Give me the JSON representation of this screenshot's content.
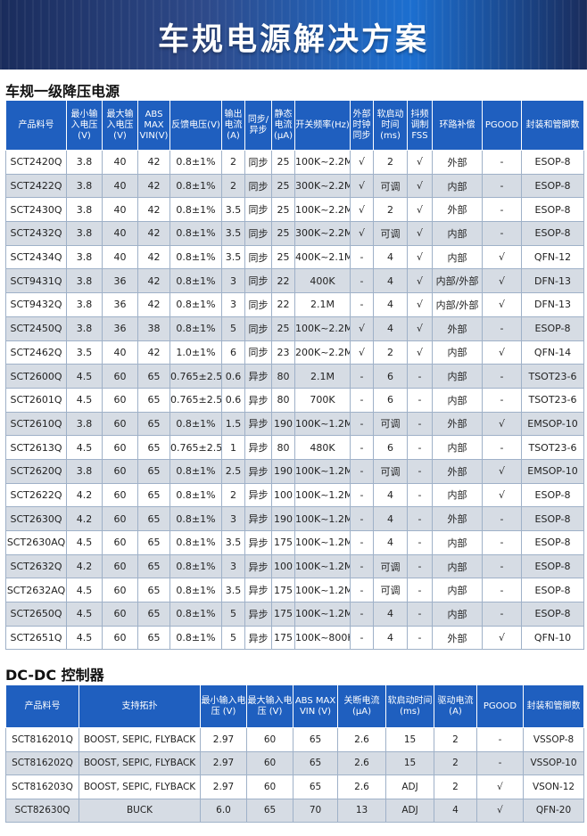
{
  "banner": {
    "title": "车规电源解决方案"
  },
  "section1": {
    "title": "车规一级降压电源",
    "headers": [
      "产品料号",
      "最小输入电压(V)",
      "最大输入电压(V)",
      "ABS MAX VIN(V)",
      "反馈电压(V)",
      "输出电流(A)",
      "同步/异步",
      "静态电流(μA)",
      "开关频率(Hz)",
      "外部时钟同步",
      "软启动时间(ms)",
      "抖频调制FSS",
      "环路补偿",
      "PGOOD",
      "封装和管脚数"
    ],
    "rows": [
      [
        "SCT2420Q",
        "3.8",
        "40",
        "42",
        "0.8±1%",
        "2",
        "同步",
        "25",
        "100K~2.2M",
        "√",
        "2",
        "√",
        "外部",
        "-",
        "ESOP-8"
      ],
      [
        "SCT2422Q",
        "3.8",
        "40",
        "42",
        "0.8±1%",
        "2",
        "同步",
        "25",
        "300K~2.2M",
        "√",
        "可调",
        "√",
        "内部",
        "-",
        "ESOP-8"
      ],
      [
        "SCT2430Q",
        "3.8",
        "40",
        "42",
        "0.8±1%",
        "3.5",
        "同步",
        "25",
        "100K~2.2M",
        "√",
        "2",
        "√",
        "外部",
        "-",
        "ESOP-8"
      ],
      [
        "SCT2432Q",
        "3.8",
        "40",
        "42",
        "0.8±1%",
        "3.5",
        "同步",
        "25",
        "300K~2.2M",
        "√",
        "可调",
        "√",
        "内部",
        "-",
        "ESOP-8"
      ],
      [
        "SCT2434Q",
        "3.8",
        "40",
        "42",
        "0.8±1%",
        "3.5",
        "同步",
        "25",
        "400K~2.1M",
        "-",
        "4",
        "√",
        "内部",
        "√",
        "QFN-12"
      ],
      [
        "SCT9431Q",
        "3.8",
        "36",
        "42",
        "0.8±1%",
        "3",
        "同步",
        "22",
        "400K",
        "-",
        "4",
        "√",
        "内部/外部",
        "√",
        "DFN-13"
      ],
      [
        "SCT9432Q",
        "3.8",
        "36",
        "42",
        "0.8±1%",
        "3",
        "同步",
        "22",
        "2.1M",
        "-",
        "4",
        "√",
        "内部/外部",
        "√",
        "DFN-13"
      ],
      [
        "SCT2450Q",
        "3.8",
        "36",
        "38",
        "0.8±1%",
        "5",
        "同步",
        "25",
        "100K~2.2M",
        "√",
        "4",
        "√",
        "外部",
        "-",
        "ESOP-8"
      ],
      [
        "SCT2462Q",
        "3.5",
        "40",
        "42",
        "1.0±1%",
        "6",
        "同步",
        "23",
        "200K~2.2M",
        "√",
        "2",
        "√",
        "内部",
        "√",
        "QFN-14"
      ],
      [
        "SCT2600Q",
        "4.5",
        "60",
        "65",
        "0.765±2.5%",
        "0.6",
        "异步",
        "80",
        "2.1M",
        "-",
        "6",
        "-",
        "内部",
        "-",
        "TSOT23-6"
      ],
      [
        "SCT2601Q",
        "4.5",
        "60",
        "65",
        "0.765±2.5%",
        "0.6",
        "异步",
        "80",
        "700K",
        "-",
        "6",
        "-",
        "内部",
        "-",
        "TSOT23-6"
      ],
      [
        "SCT2610Q",
        "3.8",
        "60",
        "65",
        "0.8±1%",
        "1.5",
        "异步",
        "190",
        "100K~1.2M",
        "-",
        "可调",
        "-",
        "外部",
        "√",
        "EMSOP-10"
      ],
      [
        "SCT2613Q",
        "4.5",
        "60",
        "65",
        "0.765±2.5%",
        "1",
        "异步",
        "80",
        "480K",
        "-",
        "6",
        "-",
        "内部",
        "-",
        "TSOT23-6"
      ],
      [
        "SCT2620Q",
        "3.8",
        "60",
        "65",
        "0.8±1%",
        "2.5",
        "异步",
        "190",
        "100K~1.2M",
        "-",
        "可调",
        "-",
        "外部",
        "√",
        "EMSOP-10"
      ],
      [
        "SCT2622Q",
        "4.2",
        "60",
        "65",
        "0.8±1%",
        "2",
        "异步",
        "100",
        "100K~1.2M",
        "-",
        "4",
        "-",
        "内部",
        "√",
        "ESOP-8"
      ],
      [
        "SCT2630Q",
        "4.2",
        "60",
        "65",
        "0.8±1%",
        "3",
        "异步",
        "190",
        "100K~1.2M",
        "-",
        "4",
        "-",
        "外部",
        "-",
        "ESOP-8"
      ],
      [
        "SCT2630AQ",
        "4.5",
        "60",
        "65",
        "0.8±1%",
        "3.5",
        "异步",
        "175",
        "100K~1.2M",
        "-",
        "4",
        "-",
        "内部",
        "-",
        "ESOP-8"
      ],
      [
        "SCT2632Q",
        "4.2",
        "60",
        "65",
        "0.8±1%",
        "3",
        "异步",
        "100",
        "100K~1.2M",
        "-",
        "可调",
        "-",
        "内部",
        "-",
        "ESOP-8"
      ],
      [
        "SCT2632AQ",
        "4.5",
        "60",
        "65",
        "0.8±1%",
        "3.5",
        "异步",
        "175",
        "100K~1.2M",
        "-",
        "可调",
        "-",
        "内部",
        "-",
        "ESOP-8"
      ],
      [
        "SCT2650Q",
        "4.5",
        "60",
        "65",
        "0.8±1%",
        "5",
        "异步",
        "175",
        "100K~1.2M",
        "-",
        "4",
        "-",
        "内部",
        "-",
        "ESOP-8"
      ],
      [
        "SCT2651Q",
        "4.5",
        "60",
        "65",
        "0.8±1%",
        "5",
        "异步",
        "175",
        "100K~800K",
        "-",
        "4",
        "-",
        "外部",
        "√",
        "QFN-10"
      ]
    ]
  },
  "section2": {
    "title": "DC-DC 控制器",
    "headers": [
      "产品料号",
      "支持拓扑",
      "最小输入电压 (V)",
      "最大输入电压 (V)",
      "ABS MAX VIN (V)",
      "关断电流 (μA)",
      "软启动时间(ms)",
      "驱动电流 (A)",
      "PGOOD",
      "封装和管脚数"
    ],
    "rows": [
      [
        "SCT816201Q",
        "BOOST, SEPIC, FLYBACK",
        "2.97",
        "60",
        "65",
        "2.6",
        "15",
        "2",
        "-",
        "VSSOP-8"
      ],
      [
        "SCT816202Q",
        "BOOST, SEPIC, FLYBACK",
        "2.97",
        "60",
        "65",
        "2.6",
        "15",
        "2",
        "-",
        "VSSOP-10"
      ],
      [
        "SCT816203Q",
        "BOOST, SEPIC, FLYBACK",
        "2.97",
        "60",
        "65",
        "2.6",
        "ADJ",
        "2",
        "√",
        "VSON-12"
      ],
      [
        "SCT82630Q",
        "BUCK",
        "6.0",
        "65",
        "70",
        "13",
        "ADJ",
        "4",
        "√",
        "QFN-20"
      ]
    ]
  }
}
